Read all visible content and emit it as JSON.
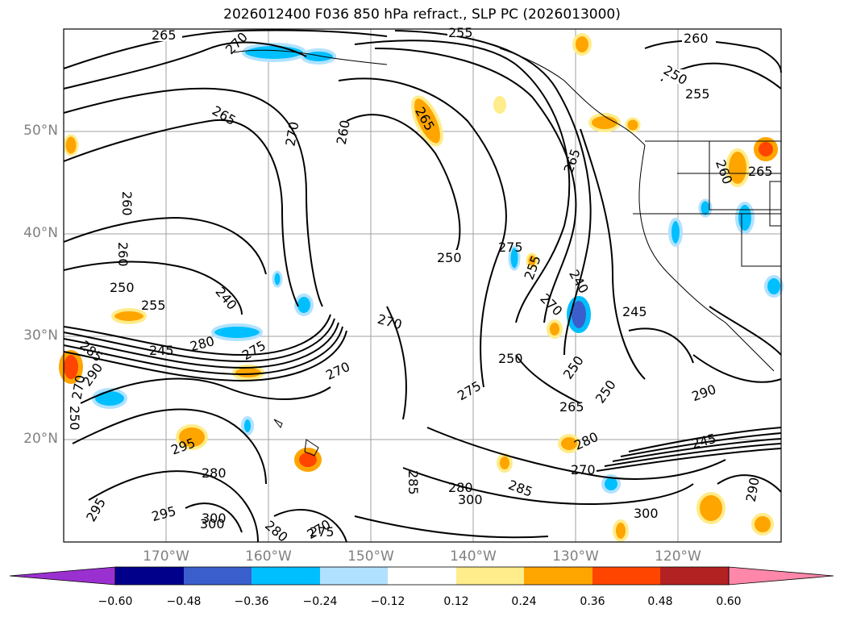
{
  "title": "2026012400 F036 850 hPa refract., SLP PC (2026013000)",
  "lat_labels": [
    "50°N",
    "40°N",
    "30°N",
    "20°N"
  ],
  "lon_labels": [
    "170°W",
    "160°W",
    "150°W",
    "140°W",
    "130°W",
    "120°W"
  ],
  "colorbar": {
    "ticks": [
      "−0.60",
      "−0.48",
      "−0.36",
      "−0.24",
      "−0.12",
      "0.12",
      "0.24",
      "0.36",
      "0.48",
      "0.60"
    ],
    "colors": [
      "#9b30d0",
      "#00008b",
      "#3a5fcd",
      "#00bfff",
      "#b0e2ff",
      "#ffffff",
      "#ffec8b",
      "#ffa500",
      "#ff4500",
      "#b22222",
      "#ff88aa"
    ]
  },
  "contour_labels": [
    "265",
    "270",
    "255",
    "260",
    "250",
    "255",
    "265",
    "270",
    "260",
    "265",
    "260",
    "260",
    "260",
    "265",
    "250",
    "255",
    "240",
    "245",
    "280",
    "285",
    "290",
    "270",
    "250",
    "275",
    "270",
    "270",
    "250",
    "250",
    "275",
    "255",
    "240",
    "245",
    "265",
    "270",
    "275",
    "265",
    "250",
    "250",
    "245",
    "280",
    "270",
    "295",
    "280",
    "295",
    "285",
    "300",
    "300",
    "290",
    "295",
    "300",
    "280",
    "270",
    "275",
    "285",
    "300",
    "280",
    "290"
  ],
  "colors": {
    "contour": "#000000",
    "grid": "#a0a0a0",
    "coast": "#000000"
  }
}
